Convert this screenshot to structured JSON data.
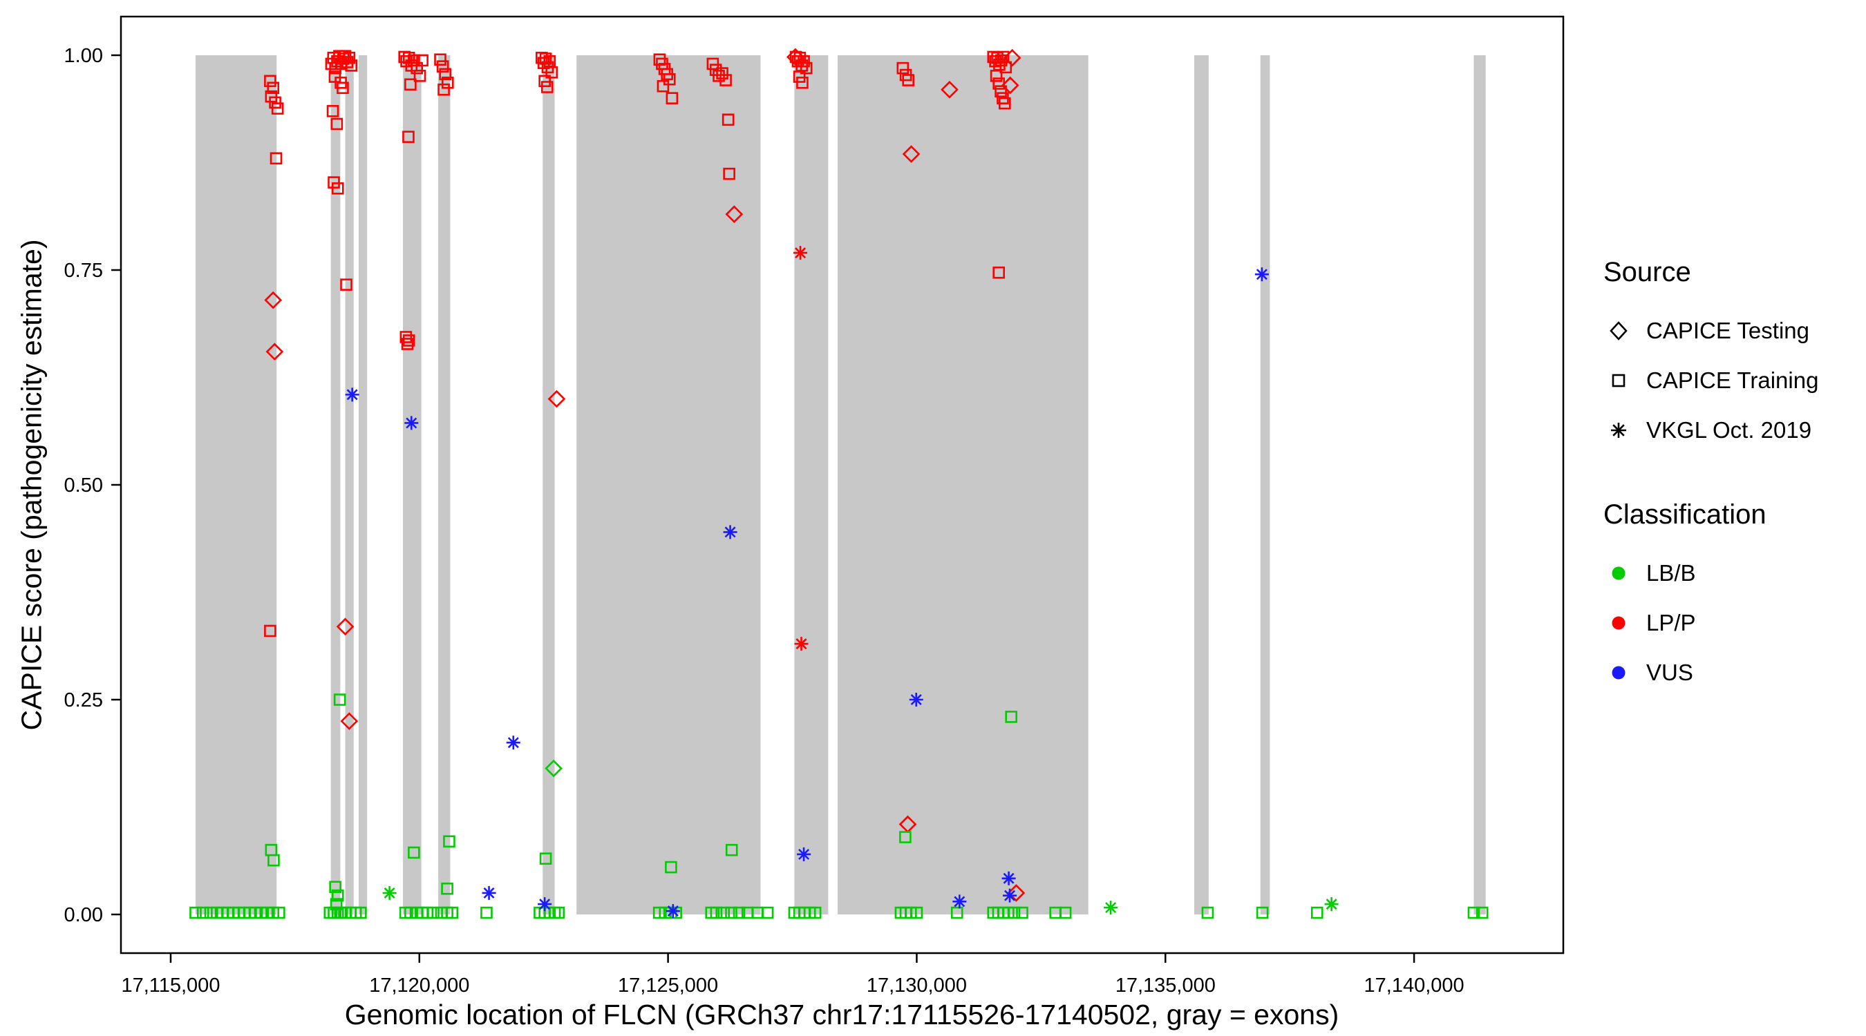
{
  "chart_data": {
    "type": "scatter",
    "title": "",
    "xlabel": "Genomic location of FLCN (GRCh37 chr17:17115526-17140502, gray = exons)",
    "ylabel": "CAPICE score (pathogenicity estimate)",
    "xlim": [
      17114000,
      17143000
    ],
    "ylim": [
      -0.045,
      1.045
    ],
    "x_ticks": [
      17115000,
      17120000,
      17125000,
      17130000,
      17135000,
      17140000
    ],
    "x_tick_labels": [
      "17,115,000",
      "17,120,000",
      "17,125,000",
      "17,130,000",
      "17,135,000",
      "17,140,000"
    ],
    "y_ticks": [
      0.0,
      0.25,
      0.5,
      0.75,
      1.0
    ],
    "y_tick_labels": [
      "0.00",
      "0.25",
      "0.50",
      "0.75",
      "1.00"
    ],
    "grid": false,
    "legend_position": "right",
    "exon_color": "#c8c8c8",
    "exons": [
      [
        17115500,
        17117130
      ],
      [
        17118220,
        17118410
      ],
      [
        17118510,
        17118680
      ],
      [
        17118780,
        17118950
      ],
      [
        17119670,
        17120040
      ],
      [
        17120380,
        17120620
      ],
      [
        17122480,
        17122720
      ],
      [
        17123160,
        17126860
      ],
      [
        17127540,
        17128220
      ],
      [
        17128410,
        17133450
      ],
      [
        17135580,
        17135870
      ],
      [
        17136910,
        17137100
      ],
      [
        17141200,
        17141440
      ]
    ],
    "colors": {
      "LB/B": "#00cd00",
      "LP/P": "#ff0000",
      "VUS": "#1a1aff"
    },
    "markers": {
      "CAPICE Testing": "diamond",
      "CAPICE Training": "square",
      "VKGL Oct. 2019": "asterisk"
    },
    "series": [
      {
        "source": "CAPICE Testing",
        "classification": "LP/P",
        "points": [
          [
            17117060,
            0.715
          ],
          [
            17117090,
            0.655
          ],
          [
            17118510,
            0.335
          ],
          [
            17118590,
            0.225
          ],
          [
            17122760,
            0.6
          ],
          [
            17126330,
            0.815
          ],
          [
            17127560,
            0.998
          ],
          [
            17129820,
            0.105
          ],
          [
            17129890,
            0.885
          ],
          [
            17130660,
            0.96
          ],
          [
            17131880,
            0.965
          ],
          [
            17131920,
            0.997
          ],
          [
            17132000,
            0.025
          ]
        ]
      },
      {
        "source": "CAPICE Testing",
        "classification": "LB/B",
        "points": [
          [
            17122700,
            0.17
          ]
        ]
      },
      {
        "source": "CAPICE Training",
        "classification": "LP/P",
        "points": [
          [
            17117000,
            0.97
          ],
          [
            17117060,
            0.962
          ],
          [
            17117020,
            0.952
          ],
          [
            17117100,
            0.945
          ],
          [
            17117150,
            0.938
          ],
          [
            17117120,
            0.88
          ],
          [
            17117000,
            0.33
          ],
          [
            17118230,
            0.99
          ],
          [
            17118270,
            0.997
          ],
          [
            17118310,
            0.985
          ],
          [
            17118350,
            0.993
          ],
          [
            17118390,
            0.999
          ],
          [
            17118430,
            0.99
          ],
          [
            17118470,
            0.996
          ],
          [
            17118510,
            0.999
          ],
          [
            17118550,
            0.992
          ],
          [
            17118590,
            0.997
          ],
          [
            17118630,
            0.988
          ],
          [
            17118300,
            0.975
          ],
          [
            17118420,
            0.968
          ],
          [
            17118460,
            0.962
          ],
          [
            17118260,
            0.935
          ],
          [
            17118340,
            0.92
          ],
          [
            17118280,
            0.852
          ],
          [
            17118360,
            0.845
          ],
          [
            17118530,
            0.733
          ],
          [
            17119700,
            0.998
          ],
          [
            17119740,
            0.993
          ],
          [
            17119790,
            0.997
          ],
          [
            17119840,
            0.988
          ],
          [
            17119890,
            0.994
          ],
          [
            17119950,
            0.985
          ],
          [
            17120010,
            0.976
          ],
          [
            17120060,
            0.994
          ],
          [
            17119820,
            0.966
          ],
          [
            17119780,
            0.905
          ],
          [
            17119730,
            0.672
          ],
          [
            17119760,
            0.664
          ],
          [
            17119790,
            0.668
          ],
          [
            17120420,
            0.995
          ],
          [
            17120470,
            0.987
          ],
          [
            17120520,
            0.978
          ],
          [
            17120570,
            0.968
          ],
          [
            17120490,
            0.96
          ],
          [
            17122460,
            0.997
          ],
          [
            17122500,
            0.991
          ],
          [
            17122540,
            0.996
          ],
          [
            17122580,
            0.986
          ],
          [
            17122620,
            0.993
          ],
          [
            17122660,
            0.98
          ],
          [
            17122520,
            0.97
          ],
          [
            17122570,
            0.963
          ],
          [
            17124830,
            0.995
          ],
          [
            17124880,
            0.99
          ],
          [
            17124930,
            0.984
          ],
          [
            17124980,
            0.978
          ],
          [
            17125030,
            0.972
          ],
          [
            17124900,
            0.964
          ],
          [
            17125080,
            0.95
          ],
          [
            17125900,
            0.99
          ],
          [
            17125960,
            0.983
          ],
          [
            17126020,
            0.976
          ],
          [
            17126090,
            0.979
          ],
          [
            17126160,
            0.971
          ],
          [
            17126210,
            0.925
          ],
          [
            17126230,
            0.862
          ],
          [
            17127570,
            0.998
          ],
          [
            17127610,
            0.993
          ],
          [
            17127650,
            0.997
          ],
          [
            17127690,
            0.988
          ],
          [
            17127730,
            0.993
          ],
          [
            17127780,
            0.985
          ],
          [
            17127640,
            0.975
          ],
          [
            17127700,
            0.968
          ],
          [
            17129720,
            0.985
          ],
          [
            17129780,
            0.977
          ],
          [
            17129830,
            0.971
          ],
          [
            17131540,
            0.998
          ],
          [
            17131580,
            0.993
          ],
          [
            17131620,
            0.997
          ],
          [
            17131660,
            0.989
          ],
          [
            17131700,
            0.994
          ],
          [
            17131740,
            0.998
          ],
          [
            17131790,
            0.986
          ],
          [
            17131600,
            0.976
          ],
          [
            17131650,
            0.967
          ],
          [
            17131690,
            0.958
          ],
          [
            17131730,
            0.95
          ],
          [
            17131770,
            0.944
          ],
          [
            17131650,
            0.747
          ]
        ]
      },
      {
        "source": "CAPICE Training",
        "classification": "LB/B",
        "points": [
          [
            17117020,
            0.075
          ],
          [
            17117070,
            0.063
          ],
          [
            17118400,
            0.25
          ],
          [
            17118310,
            0.032
          ],
          [
            17118360,
            0.022
          ],
          [
            17118330,
            0.012
          ],
          [
            17119890,
            0.072
          ],
          [
            17120600,
            0.085
          ],
          [
            17120560,
            0.03
          ],
          [
            17122540,
            0.065
          ],
          [
            17125060,
            0.055
          ],
          [
            17126280,
            0.075
          ],
          [
            17129770,
            0.09
          ],
          [
            17131900,
            0.23
          ],
          [
            17115500,
            0.002
          ],
          [
            17115650,
            0.002
          ],
          [
            17115800,
            0.002
          ],
          [
            17115930,
            0.002
          ],
          [
            17116040,
            0.002
          ],
          [
            17116150,
            0.002
          ],
          [
            17116260,
            0.002
          ],
          [
            17116370,
            0.002
          ],
          [
            17116480,
            0.002
          ],
          [
            17116590,
            0.002
          ],
          [
            17116700,
            0.002
          ],
          [
            17116820,
            0.002
          ],
          [
            17116940,
            0.002
          ],
          [
            17117060,
            0.002
          ],
          [
            17117180,
            0.002
          ],
          [
            17118200,
            0.002
          ],
          [
            17118280,
            0.002
          ],
          [
            17118360,
            0.002
          ],
          [
            17118440,
            0.002
          ],
          [
            17118520,
            0.002
          ],
          [
            17118620,
            0.002
          ],
          [
            17118720,
            0.002
          ],
          [
            17118820,
            0.002
          ],
          [
            17119720,
            0.002
          ],
          [
            17119820,
            0.002
          ],
          [
            17119960,
            0.002
          ],
          [
            17120060,
            0.002
          ],
          [
            17120160,
            0.002
          ],
          [
            17120280,
            0.002
          ],
          [
            17120440,
            0.002
          ],
          [
            17120560,
            0.002
          ],
          [
            17120660,
            0.002
          ],
          [
            17121350,
            0.002
          ],
          [
            17122420,
            0.002
          ],
          [
            17122520,
            0.002
          ],
          [
            17122620,
            0.002
          ],
          [
            17122720,
            0.002
          ],
          [
            17122800,
            0.002
          ],
          [
            17124820,
            0.002
          ],
          [
            17124940,
            0.002
          ],
          [
            17125060,
            0.002
          ],
          [
            17125160,
            0.002
          ],
          [
            17125870,
            0.002
          ],
          [
            17125970,
            0.002
          ],
          [
            17126120,
            0.002
          ],
          [
            17126270,
            0.002
          ],
          [
            17126430,
            0.002
          ],
          [
            17126600,
            0.002
          ],
          [
            17126800,
            0.002
          ],
          [
            17127000,
            0.002
          ],
          [
            17127540,
            0.002
          ],
          [
            17127640,
            0.002
          ],
          [
            17127740,
            0.002
          ],
          [
            17127850,
            0.002
          ],
          [
            17127960,
            0.002
          ],
          [
            17129680,
            0.002
          ],
          [
            17129780,
            0.002
          ],
          [
            17129880,
            0.002
          ],
          [
            17130000,
            0.002
          ],
          [
            17130810,
            0.002
          ],
          [
            17131540,
            0.002
          ],
          [
            17131640,
            0.002
          ],
          [
            17131740,
            0.002
          ],
          [
            17131840,
            0.002
          ],
          [
            17131960,
            0.002
          ],
          [
            17132120,
            0.002
          ],
          [
            17132790,
            0.002
          ],
          [
            17132990,
            0.002
          ],
          [
            17135850,
            0.002
          ],
          [
            17136950,
            0.002
          ],
          [
            17138050,
            0.002
          ],
          [
            17141200,
            0.002
          ],
          [
            17141370,
            0.002
          ]
        ]
      },
      {
        "source": "VKGL Oct. 2019",
        "classification": "VUS",
        "points": [
          [
            17118650,
            0.605
          ],
          [
            17119840,
            0.572
          ],
          [
            17121400,
            0.025
          ],
          [
            17121890,
            0.2
          ],
          [
            17122520,
            0.012
          ],
          [
            17125100,
            0.004
          ],
          [
            17126250,
            0.445
          ],
          [
            17127730,
            0.07
          ],
          [
            17129990,
            0.25
          ],
          [
            17130860,
            0.015
          ],
          [
            17131850,
            0.042
          ],
          [
            17131870,
            0.022
          ],
          [
            17136940,
            0.745
          ]
        ]
      },
      {
        "source": "VKGL Oct. 2019",
        "classification": "LP/P",
        "points": [
          [
            17127660,
            0.77
          ],
          [
            17127680,
            0.315
          ]
        ]
      },
      {
        "source": "VKGL Oct. 2019",
        "classification": "LB/B",
        "points": [
          [
            17119400,
            0.025
          ],
          [
            17133900,
            0.008
          ],
          [
            17138340,
            0.012
          ]
        ]
      }
    ]
  },
  "legend": {
    "source": {
      "title": "Source",
      "items": [
        {
          "label": "CAPICE Testing",
          "marker": "diamond"
        },
        {
          "label": "CAPICE Training",
          "marker": "square"
        },
        {
          "label": "VKGL Oct. 2019",
          "marker": "asterisk"
        }
      ]
    },
    "classification": {
      "title": "Classification",
      "items": [
        {
          "label": "LB/B",
          "color": "#00cd00"
        },
        {
          "label": "LP/P",
          "color": "#ff0000"
        },
        {
          "label": "VUS",
          "color": "#1a1aff"
        }
      ]
    }
  }
}
